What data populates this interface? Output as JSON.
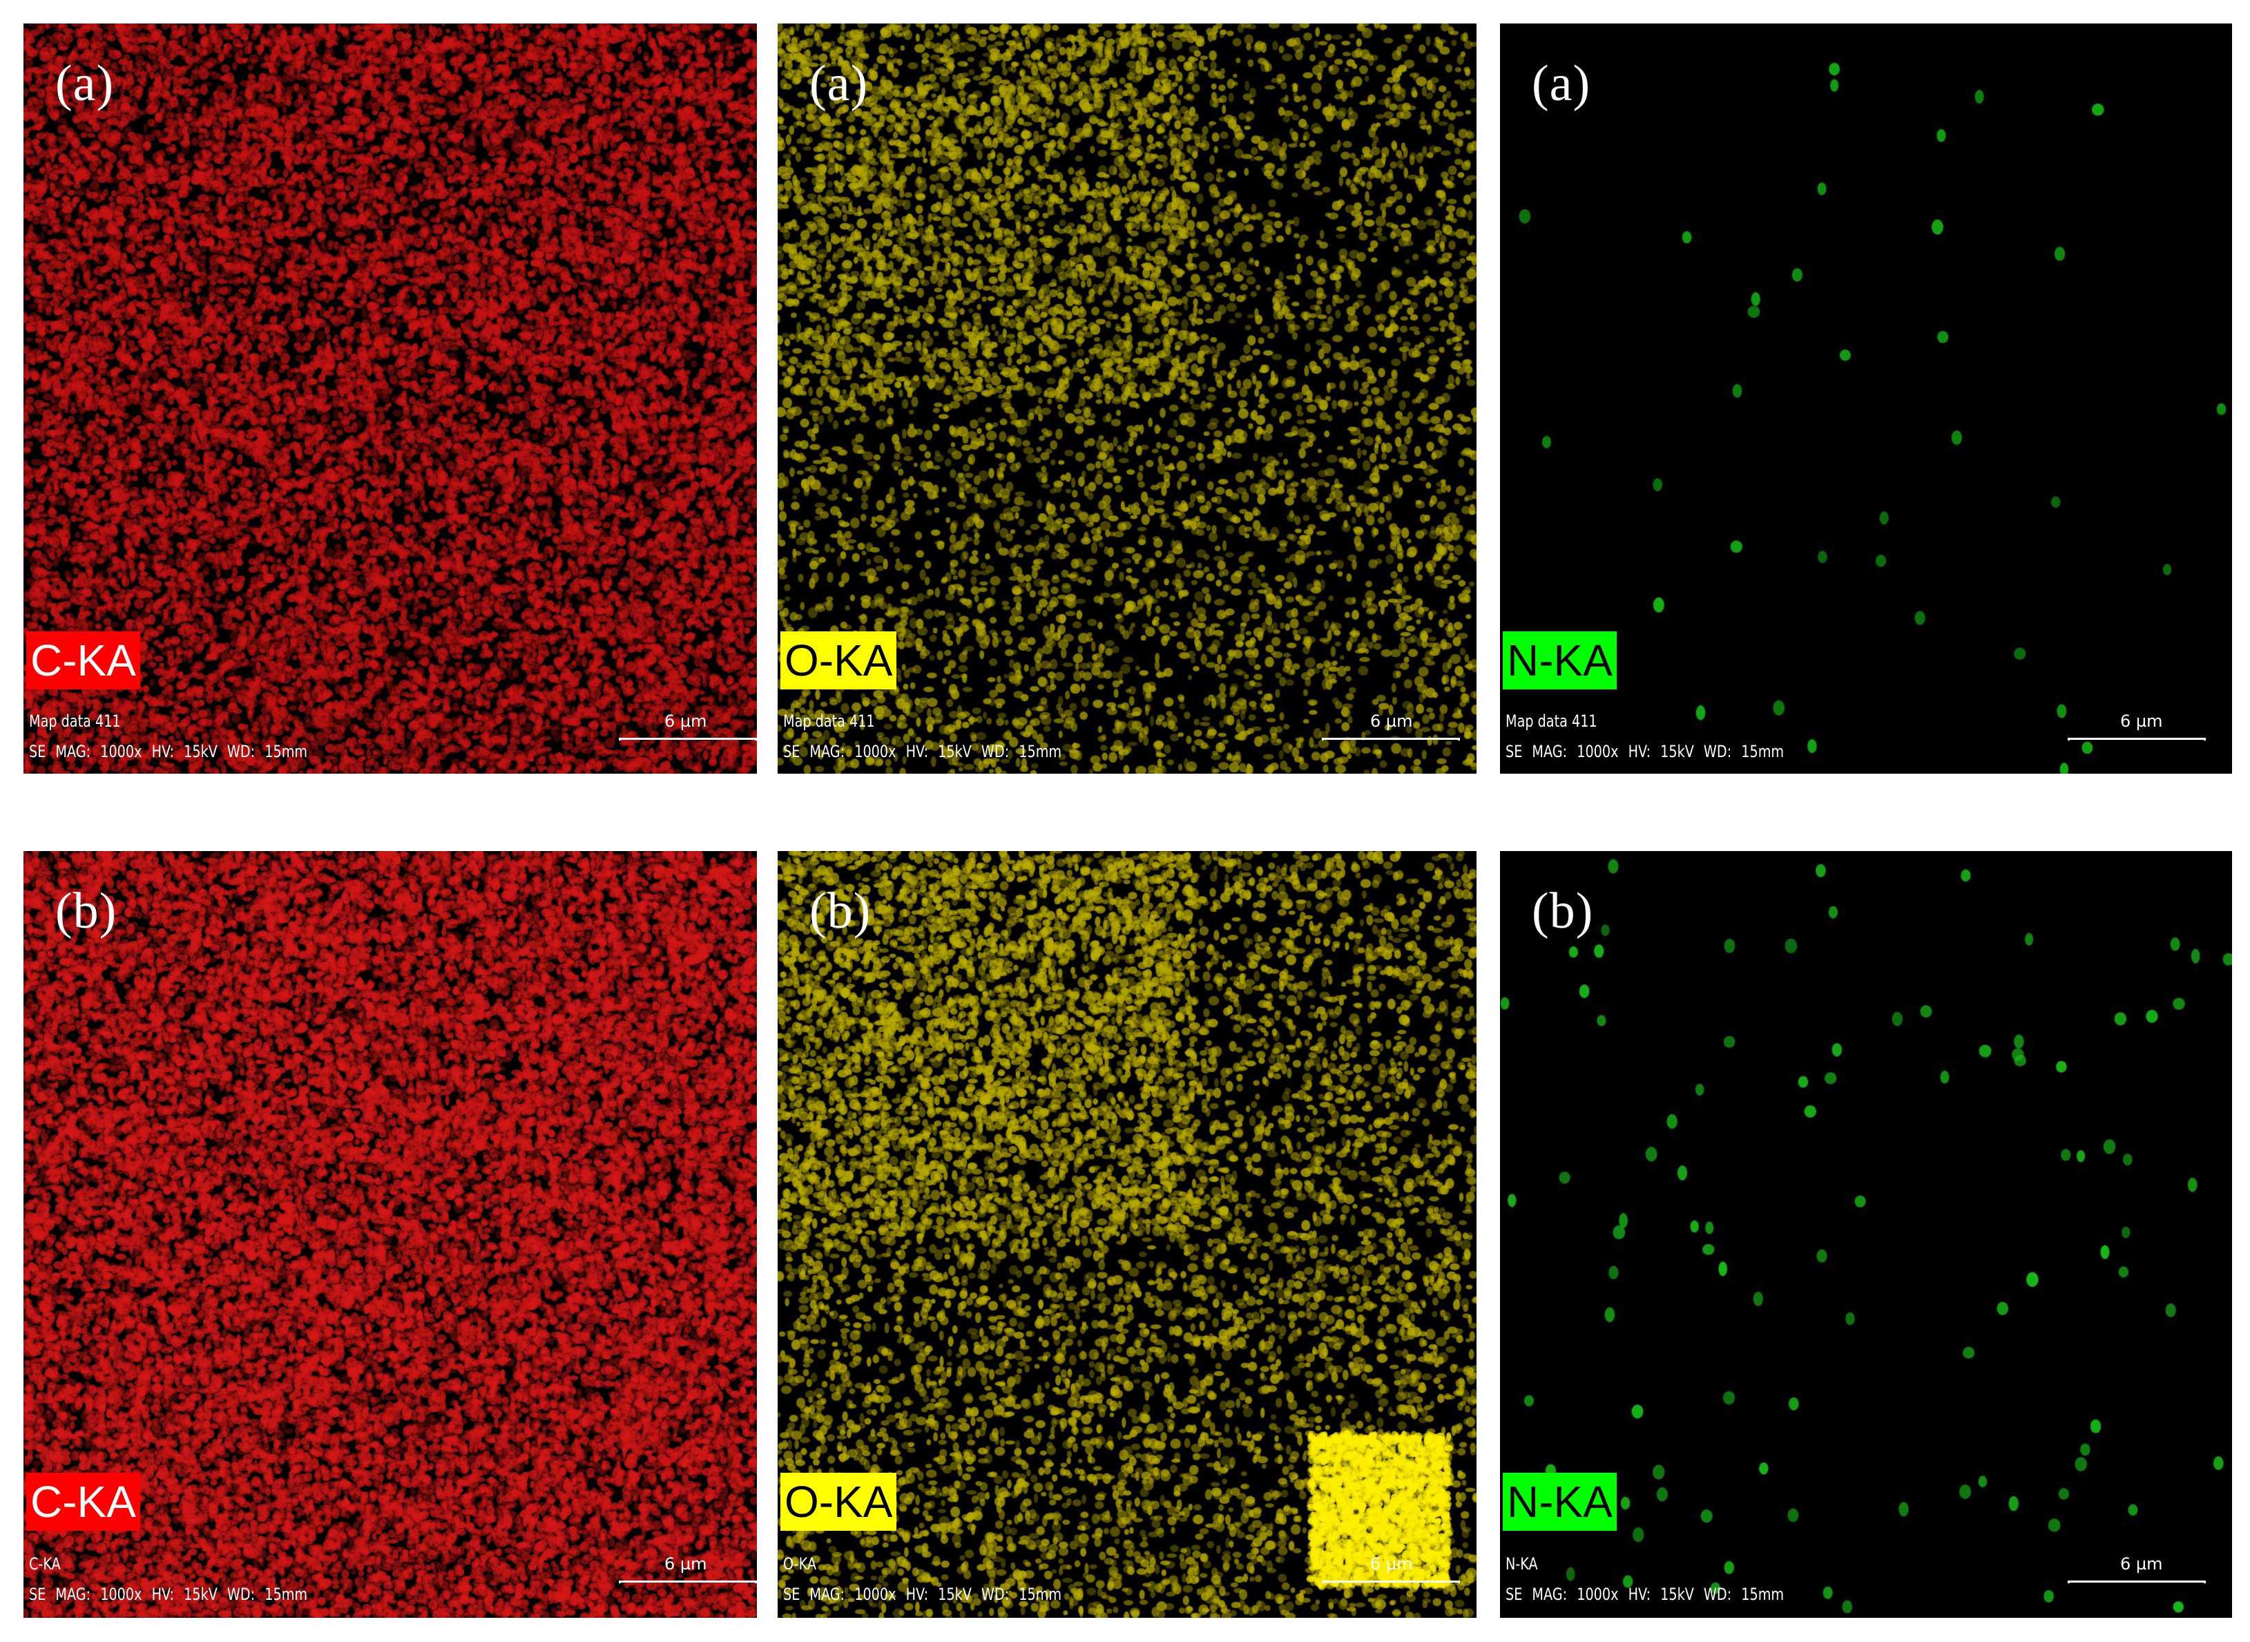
{
  "panels": [
    {
      "letter": "(a)",
      "element": "C-KA",
      "tag_color": "#ff0000",
      "tag_text_color": "#ffffff",
      "dot_color": "#c81414",
      "density": 0.95,
      "style": "dense",
      "meta_line_1": "Map data 411",
      "meta_line_2": "SE  MAG: 1000x  HV: 15kV  WD: 15mm",
      "scale": "6 µm"
    },
    {
      "letter": "(a)",
      "element": "O-KA",
      "tag_color": "#ffff00",
      "tag_text_color": "#000000",
      "dot_color": "#b4a800",
      "density": 0.35,
      "style": "sparse",
      "meta_line_1": "Map data 411",
      "meta_line_2": "SE  MAG: 1000x  HV: 15kV  WD: 15mm",
      "scale": "6 µm"
    },
    {
      "letter": "(a)",
      "element": "N-KA",
      "tag_color": "#00ff00",
      "tag_text_color": "#000000",
      "dot_color": "#14b414",
      "density": 0.06,
      "style": "dots",
      "meta_line_1": "Map data 411",
      "meta_line_2": "SE  MAG: 1000x  HV: 15kV  WD: 15mm",
      "scale": "6 µm"
    },
    {
      "letter": "(b)",
      "element": "C-KA",
      "tag_color": "#ff0000",
      "tag_text_color": "#ffffff",
      "dot_color": "#d41818",
      "density": 1.25,
      "style": "dense",
      "meta_line_1": "C-KA",
      "meta_line_2": "SE  MAG: 1000x  HV: 15kV  WD: 15mm",
      "scale": "6 µm"
    },
    {
      "letter": "(b)",
      "element": "O-KA",
      "tag_color": "#ffff00",
      "tag_text_color": "#000000",
      "dot_color": "#bcae00",
      "density": 0.45,
      "style": "sparse",
      "meta_line_1": "O-KA",
      "meta_line_2": "SE  MAG: 1000x  HV: 15kV  WD: 15mm",
      "scale": "6 µm"
    },
    {
      "letter": "(b)",
      "element": "N-KA",
      "tag_color": "#00ff00",
      "tag_text_color": "#000000",
      "dot_color": "#18b418",
      "density": 0.16,
      "style": "dots",
      "meta_line_1": "N-KA",
      "meta_line_2": "SE  MAG: 1000x  HV: 15kV  WD: 15mm",
      "scale": "6 µm"
    }
  ]
}
